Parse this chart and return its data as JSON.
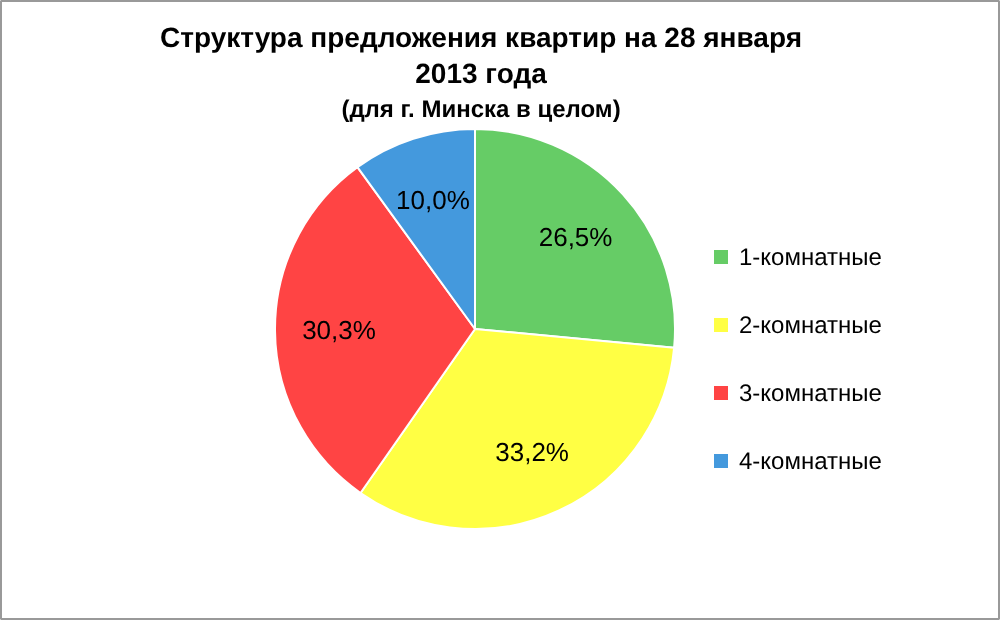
{
  "chart_data": {
    "type": "pie",
    "title": "Структура предложения квартир на 28 января 2013 года",
    "subtitle": "(для г. Минска в целом)",
    "categories": [
      "1-комнатные",
      "2-комнатные",
      "3-комнатные",
      "4-комнатные"
    ],
    "values": [
      26.5,
      33.2,
      30.3,
      10.0
    ],
    "colors": [
      "#66cc66",
      "#ffff44",
      "#ff4444",
      "#4499dd"
    ],
    "value_labels": [
      "26,5%",
      "33,2%",
      "30,3%",
      "10,0%"
    ],
    "legend": "right"
  }
}
